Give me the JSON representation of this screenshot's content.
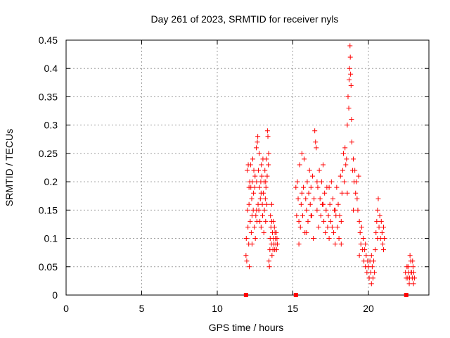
{
  "chart_data": {
    "type": "scatter",
    "title": "Day 261 of 2023, SRMTID for receiver nyls",
    "xlabel": "GPS time / hours",
    "ylabel": "SRMTID / TECUs",
    "xlim": [
      0,
      24
    ],
    "ylim": [
      0,
      0.45
    ],
    "x_ticks": [
      0,
      5,
      10,
      15,
      20
    ],
    "x_tick_labels": [
      "0",
      "5",
      "10",
      "15",
      "20"
    ],
    "y_ticks": [
      0,
      0.05,
      0.1,
      0.15,
      0.2,
      0.25,
      0.3,
      0.35,
      0.4,
      0.45
    ],
    "y_tick_labels": [
      "0",
      "0.05",
      "0.1",
      "0.15",
      "0.2",
      "0.25",
      "0.3",
      "0.35",
      "0.4",
      "0.45"
    ],
    "grid": true,
    "legend": "none",
    "marker": "plus",
    "zero_markers": {
      "marker": "square",
      "x": [
        11.9,
        15.2,
        22.5
      ],
      "y": [
        0,
        0,
        0
      ]
    },
    "series": [
      {
        "name": "SRMTID",
        "color": "#ff0000",
        "points": [
          [
            11.9,
            0.07
          ],
          [
            11.92,
            0.1
          ],
          [
            11.95,
            0.06
          ],
          [
            11.98,
            0.22
          ],
          [
            12.0,
            0.15
          ],
          [
            12.03,
            0.12
          ],
          [
            12.05,
            0.23
          ],
          [
            12.08,
            0.09
          ],
          [
            12.1,
            0.16
          ],
          [
            12.12,
            0.05
          ],
          [
            12.15,
            0.2
          ],
          [
            12.18,
            0.13
          ],
          [
            12.2,
            0.23
          ],
          [
            12.22,
            0.19
          ],
          [
            12.25,
            0.11
          ],
          [
            12.28,
            0.17
          ],
          [
            12.3,
            0.14
          ],
          [
            12.32,
            0.2
          ],
          [
            12.35,
            0.24
          ],
          [
            12.38,
            0.15
          ],
          [
            12.4,
            0.18
          ],
          [
            12.42,
            0.22
          ],
          [
            12.45,
            0.12
          ],
          [
            12.48,
            0.19
          ],
          [
            12.5,
            0.21
          ],
          [
            12.52,
            0.1
          ],
          [
            12.55,
            0.14
          ],
          [
            12.58,
            0.26
          ],
          [
            12.6,
            0.2
          ],
          [
            12.62,
            0.13
          ],
          [
            12.65,
            0.27
          ],
          [
            12.68,
            0.28
          ],
          [
            12.7,
            0.16
          ],
          [
            12.72,
            0.22
          ],
          [
            12.75,
            0.15
          ],
          [
            12.78,
            0.25
          ],
          [
            12.8,
            0.19
          ],
          [
            12.82,
            0.13
          ],
          [
            12.85,
            0.17
          ],
          [
            12.88,
            0.2
          ],
          [
            12.9,
            0.12
          ],
          [
            12.92,
            0.23
          ],
          [
            12.95,
            0.21
          ],
          [
            12.98,
            0.16
          ],
          [
            13.0,
            0.14
          ],
          [
            13.02,
            0.24
          ],
          [
            13.05,
            0.18
          ],
          [
            13.08,
            0.11
          ],
          [
            13.1,
            0.2
          ],
          [
            13.12,
            0.15
          ],
          [
            13.15,
            0.22
          ],
          [
            13.18,
            0.17
          ],
          [
            13.2,
            0.13
          ],
          [
            13.22,
            0.19
          ],
          [
            13.25,
            0.24
          ],
          [
            13.28,
            0.16
          ],
          [
            13.3,
            0.21
          ],
          [
            13.32,
            0.29
          ],
          [
            13.35,
            0.28
          ],
          [
            13.38,
            0.23
          ],
          [
            13.4,
            0.25
          ],
          [
            13.42,
            0.06
          ],
          [
            13.45,
            0.05
          ],
          [
            13.48,
            0.08
          ],
          [
            13.5,
            0.1
          ],
          [
            13.52,
            0.14
          ],
          [
            13.55,
            0.12
          ],
          [
            13.58,
            0.09
          ],
          [
            13.6,
            0.16
          ],
          [
            13.62,
            0.07
          ],
          [
            13.65,
            0.11
          ],
          [
            13.68,
            0.08
          ],
          [
            13.7,
            0.13
          ],
          [
            13.72,
            0.1
          ],
          [
            13.75,
            0.09
          ],
          [
            13.78,
            0.12
          ],
          [
            13.8,
            0.08
          ],
          [
            13.82,
            0.11
          ],
          [
            13.85,
            0.1
          ],
          [
            13.88,
            0.09
          ],
          [
            13.9,
            0.11
          ],
          [
            13.92,
            0.08
          ],
          [
            13.95,
            0.1
          ],
          [
            13.98,
            0.09
          ],
          [
            12.1,
            0.19
          ],
          [
            12.3,
            0.09
          ],
          [
            12.6,
            0.15
          ],
          [
            12.9,
            0.18
          ],
          [
            13.2,
            0.2
          ],
          [
            13.6,
            0.13
          ],
          [
            15.2,
            0.19
          ],
          [
            15.25,
            0.14
          ],
          [
            15.3,
            0.2
          ],
          [
            15.35,
            0.17
          ],
          [
            15.4,
            0.09
          ],
          [
            15.45,
            0.23
          ],
          [
            15.5,
            0.12
          ],
          [
            15.55,
            0.16
          ],
          [
            15.6,
            0.25
          ],
          [
            15.65,
            0.14
          ],
          [
            15.7,
            0.19
          ],
          [
            15.75,
            0.24
          ],
          [
            15.8,
            0.11
          ],
          [
            15.85,
            0.17
          ],
          [
            15.9,
            0.15
          ],
          [
            15.95,
            0.2
          ],
          [
            16.0,
            0.13
          ],
          [
            16.05,
            0.18
          ],
          [
            16.1,
            0.22
          ],
          [
            16.15,
            0.16
          ],
          [
            16.2,
            0.19
          ],
          [
            16.25,
            0.14
          ],
          [
            16.3,
            0.21
          ],
          [
            16.35,
            0.1
          ],
          [
            16.4,
            0.17
          ],
          [
            16.45,
            0.29
          ],
          [
            16.5,
            0.27
          ],
          [
            16.55,
            0.26
          ],
          [
            16.6,
            0.15
          ],
          [
            16.65,
            0.19
          ],
          [
            16.7,
            0.12
          ],
          [
            16.75,
            0.22
          ],
          [
            16.8,
            0.17
          ],
          [
            16.85,
            0.14
          ],
          [
            16.9,
            0.2
          ],
          [
            16.95,
            0.16
          ],
          [
            17.0,
            0.23
          ],
          [
            17.05,
            0.13
          ],
          [
            17.1,
            0.18
          ],
          [
            17.15,
            0.11
          ],
          [
            17.2,
            0.15
          ],
          [
            17.25,
            0.19
          ],
          [
            17.3,
            0.12
          ],
          [
            17.35,
            0.14
          ],
          [
            17.4,
            0.1
          ],
          [
            17.45,
            0.16
          ],
          [
            17.5,
            0.13
          ],
          [
            17.55,
            0.2
          ],
          [
            17.6,
            0.12
          ],
          [
            17.65,
            0.17
          ],
          [
            17.7,
            0.11
          ],
          [
            17.75,
            0.15
          ],
          [
            17.8,
            0.09
          ],
          [
            17.85,
            0.14
          ],
          [
            17.9,
            0.19
          ],
          [
            17.95,
            0.12
          ],
          [
            18.0,
            0.16
          ],
          [
            18.05,
            0.1
          ],
          [
            18.1,
            0.14
          ],
          [
            18.15,
            0.21
          ],
          [
            18.2,
            0.13
          ],
          [
            18.25,
            0.18
          ],
          [
            18.3,
            0.22
          ],
          [
            18.35,
            0.25
          ],
          [
            18.4,
            0.2
          ],
          [
            18.45,
            0.26
          ],
          [
            18.5,
            0.23
          ],
          [
            18.55,
            0.24
          ],
          [
            18.6,
            0.3
          ],
          [
            18.65,
            0.35
          ],
          [
            18.7,
            0.33
          ],
          [
            18.72,
            0.38
          ],
          [
            18.75,
            0.4
          ],
          [
            18.78,
            0.44
          ],
          [
            18.8,
            0.42
          ],
          [
            18.82,
            0.39
          ],
          [
            18.85,
            0.37
          ],
          [
            18.88,
            0.31
          ],
          [
            18.9,
            0.27
          ],
          [
            18.95,
            0.22
          ],
          [
            19.0,
            0.24
          ],
          [
            19.05,
            0.2
          ],
          [
            19.1,
            0.22
          ],
          [
            19.15,
            0.18
          ],
          [
            19.2,
            0.2
          ],
          [
            19.25,
            0.17
          ],
          [
            19.3,
            0.15
          ],
          [
            19.35,
            0.21
          ],
          [
            19.4,
            0.13
          ],
          [
            19.45,
            0.11
          ],
          [
            19.5,
            0.09
          ],
          [
            19.55,
            0.12
          ],
          [
            19.6,
            0.08
          ],
          [
            19.65,
            0.1
          ],
          [
            19.7,
            0.06
          ],
          [
            19.75,
            0.08
          ],
          [
            19.8,
            0.05
          ],
          [
            19.85,
            0.07
          ],
          [
            19.9,
            0.04
          ],
          [
            19.95,
            0.06
          ],
          [
            20.0,
            0.05
          ],
          [
            20.05,
            0.03
          ],
          [
            20.1,
            0.06
          ],
          [
            20.15,
            0.04
          ],
          [
            20.2,
            0.07
          ],
          [
            20.25,
            0.05
          ],
          [
            20.3,
            0.03
          ],
          [
            20.35,
            0.06
          ],
          [
            20.4,
            0.04
          ],
          [
            20.45,
            0.08
          ],
          [
            20.5,
            0.11
          ],
          [
            20.55,
            0.13
          ],
          [
            20.6,
            0.15
          ],
          [
            20.65,
            0.17
          ],
          [
            20.7,
            0.12
          ],
          [
            20.75,
            0.14
          ],
          [
            20.8,
            0.1
          ],
          [
            20.85,
            0.13
          ],
          [
            20.9,
            0.11
          ],
          [
            20.95,
            0.09
          ],
          [
            21.0,
            0.12
          ],
          [
            21.05,
            0.1
          ],
          [
            15.4,
            0.13
          ],
          [
            15.6,
            0.18
          ],
          [
            15.9,
            0.11
          ],
          [
            16.2,
            0.14
          ],
          [
            16.6,
            0.2
          ],
          [
            17.0,
            0.16
          ],
          [
            17.4,
            0.19
          ],
          [
            17.8,
            0.15
          ],
          [
            18.2,
            0.09
          ],
          [
            18.6,
            0.18
          ],
          [
            19.0,
            0.15
          ],
          [
            19.4,
            0.07
          ],
          [
            19.8,
            0.09
          ],
          [
            20.2,
            0.02
          ],
          [
            20.6,
            0.1
          ],
          [
            21.0,
            0.08
          ],
          [
            22.45,
            0.04
          ],
          [
            22.5,
            0.03
          ],
          [
            22.55,
            0.05
          ],
          [
            22.6,
            0.03
          ],
          [
            22.65,
            0.04
          ],
          [
            22.7,
            0.02
          ],
          [
            22.75,
            0.07
          ],
          [
            22.8,
            0.06
          ],
          [
            22.85,
            0.04
          ],
          [
            22.9,
            0.03
          ],
          [
            22.95,
            0.05
          ],
          [
            23.0,
            0.04
          ],
          [
            23.05,
            0.03
          ],
          [
            22.62,
            0.05
          ],
          [
            22.72,
            0.03
          ],
          [
            22.82,
            0.04
          ],
          [
            22.92,
            0.06
          ],
          [
            22.98,
            0.02
          ]
        ]
      }
    ]
  }
}
